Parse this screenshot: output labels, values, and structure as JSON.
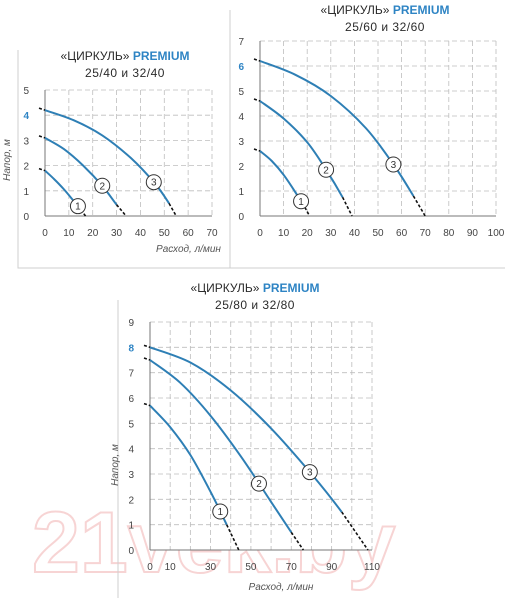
{
  "charts": [
    {
      "title_quote_name": "«ЦИРКУЛЬ»",
      "title_brand": "PREMIUM",
      "title_models": "25/40 и 32/40"
    },
    {
      "title_quote_name": "«ЦИРКУЛЬ»",
      "title_brand": "PREMIUM",
      "title_models": "25/60 и 32/60"
    },
    {
      "title_quote_name": "«ЦИРКУЛЬ»",
      "title_brand": "PREMIUM",
      "title_models": "25/80 и 32/80"
    }
  ],
  "watermark": "21vek.by",
  "colors": {
    "curve": "#2e7fb5",
    "grid": "#bdbdbd",
    "highlight": "#2e84c4",
    "dash_tail": "#111111"
  },
  "chart_data": [
    {
      "type": "line",
      "title": "«ЦИРКУЛЬ» PREMIUM 25/40 и 32/40",
      "xlabel": "Расход, л/мин",
      "ylabel": "Напор, м",
      "xlim": [
        0,
        70
      ],
      "ylim": [
        0,
        5
      ],
      "x_ticks": [
        0,
        10,
        20,
        30,
        40,
        50,
        60,
        70
      ],
      "y_ticks": [
        0,
        1,
        2,
        3,
        4,
        5
      ],
      "highlight_y": 4,
      "grid": true,
      "series": [
        {
          "name": "1",
          "x": [
            0,
            4,
            8,
            12,
            15,
            17
          ],
          "y": [
            1.8,
            1.45,
            1.05,
            0.6,
            0.25,
            0
          ]
        },
        {
          "name": "2",
          "x": [
            0,
            8,
            16,
            24,
            30,
            34
          ],
          "y": [
            3.1,
            2.65,
            2.0,
            1.2,
            0.45,
            0
          ]
        },
        {
          "name": "3",
          "x": [
            0,
            12,
            24,
            36,
            46,
            52,
            55
          ],
          "y": [
            4.2,
            3.8,
            3.2,
            2.3,
            1.3,
            0.5,
            0
          ]
        }
      ]
    },
    {
      "type": "line",
      "title": "«ЦИРКУЛЬ» PREMIUM 25/60 и 32/60",
      "xlabel": "",
      "ylabel": "",
      "xlim": [
        0,
        100
      ],
      "ylim": [
        0,
        7
      ],
      "x_ticks": [
        0,
        10,
        20,
        30,
        40,
        50,
        60,
        70,
        80,
        90,
        100
      ],
      "y_ticks": [
        0,
        1,
        2,
        3,
        4,
        5,
        6,
        7
      ],
      "highlight_y": 6,
      "grid": true,
      "series": [
        {
          "name": "1",
          "x": [
            0,
            5,
            10,
            15,
            19,
            21
          ],
          "y": [
            2.6,
            2.2,
            1.65,
            0.95,
            0.35,
            0
          ]
        },
        {
          "name": "2",
          "x": [
            0,
            10,
            20,
            28,
            35,
            39
          ],
          "y": [
            4.6,
            3.9,
            2.95,
            1.85,
            0.75,
            0
          ]
        },
        {
          "name": "3",
          "x": [
            0,
            15,
            30,
            45,
            57,
            65,
            70
          ],
          "y": [
            6.2,
            5.65,
            4.8,
            3.5,
            2.0,
            0.8,
            0
          ]
        }
      ]
    },
    {
      "type": "line",
      "title": "«ЦИРКУЛЬ» PREMIUM 25/80 и 32/80",
      "xlabel": "Расход, л/мин",
      "ylabel": "Напор, м",
      "xlim": [
        0,
        110
      ],
      "ylim": [
        0,
        9
      ],
      "x_ticks": [
        0,
        10,
        30,
        50,
        70,
        90,
        110
      ],
      "x_grid": [
        0,
        10,
        20,
        30,
        40,
        50,
        60,
        70,
        80,
        90,
        100,
        110
      ],
      "y_ticks": [
        0,
        1,
        2,
        3,
        4,
        5,
        6,
        7,
        8,
        9
      ],
      "highlight_y": 8,
      "grid": true,
      "series": [
        {
          "name": "1",
          "x": [
            0,
            10,
            20,
            30,
            38,
            44
          ],
          "y": [
            5.7,
            4.85,
            3.75,
            2.3,
            1.0,
            0
          ]
        },
        {
          "name": "2",
          "x": [
            0,
            15,
            30,
            45,
            60,
            70,
            76
          ],
          "y": [
            7.5,
            6.6,
            5.3,
            3.7,
            1.9,
            0.7,
            0
          ]
        },
        {
          "name": "3",
          "x": [
            0,
            20,
            40,
            60,
            80,
            95,
            108
          ],
          "y": [
            8.0,
            7.4,
            6.3,
            4.8,
            3.0,
            1.5,
            0
          ]
        }
      ]
    }
  ]
}
